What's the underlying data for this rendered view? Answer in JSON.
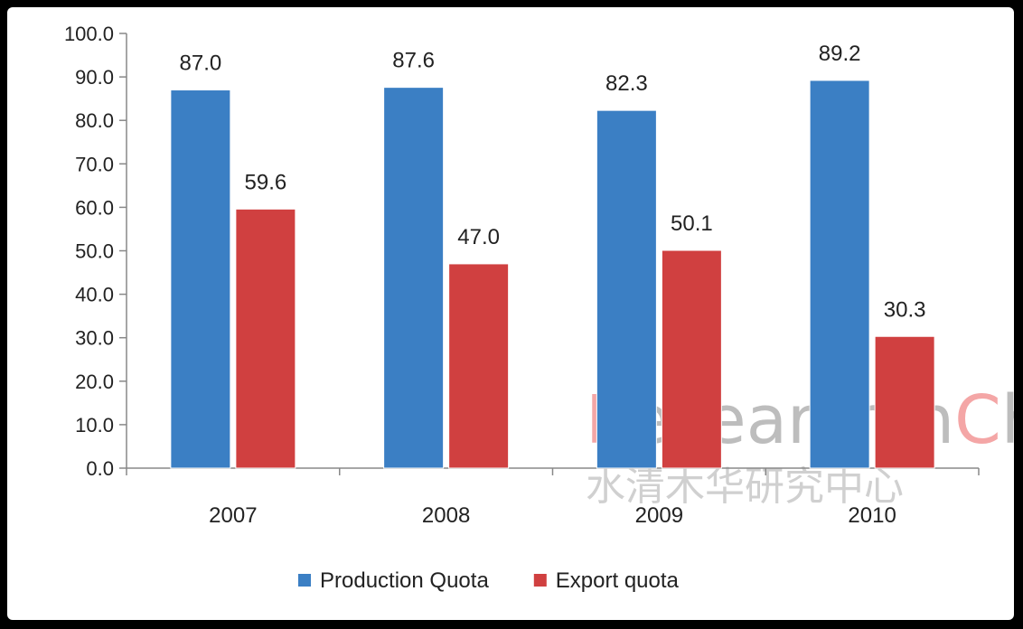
{
  "chart_data": {
    "type": "bar",
    "categories": [
      "2007",
      "2008",
      "2009",
      "2010"
    ],
    "series": [
      {
        "name": "Production Quota",
        "values": [
          87.0,
          87.6,
          82.3,
          89.2
        ],
        "color": "#3b7fc4"
      },
      {
        "name": "Export quota",
        "values": [
          59.6,
          47.0,
          50.1,
          30.3
        ],
        "color": "#d04040"
      }
    ],
    "ylim": [
      0,
      100
    ],
    "yticks": [
      0,
      10,
      20,
      30,
      40,
      50,
      60,
      70,
      80,
      90,
      100
    ],
    "title": "",
    "xlabel": "",
    "ylabel": "",
    "legend_position": "bottom",
    "grid": false
  },
  "watermark": {
    "english": "ResearchInChina",
    "chinese": "水清木华研究中心"
  }
}
